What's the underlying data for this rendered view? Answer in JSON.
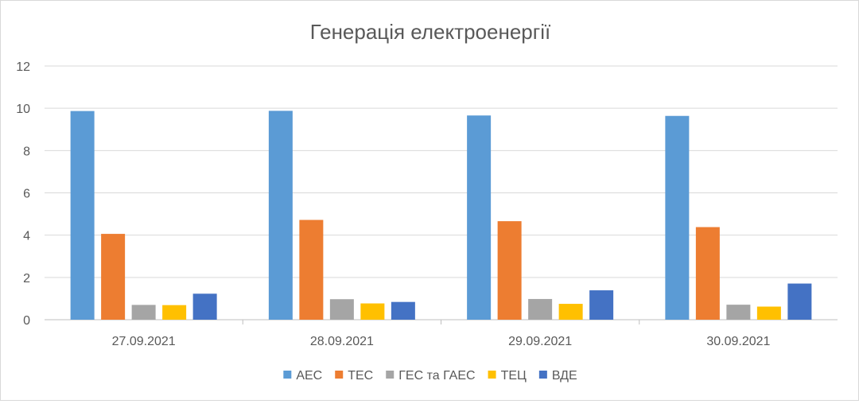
{
  "chart_data": {
    "type": "bar",
    "title": "Генерація електроенергії",
    "xlabel": "",
    "ylabel": "",
    "ylim": [
      0,
      12
    ],
    "yticks": [
      0,
      2,
      4,
      6,
      8,
      10,
      12
    ],
    "grid": true,
    "legend": "bottom",
    "categories": [
      "27.09.2021",
      "28.09.2021",
      "29.09.2021",
      "30.09.2021"
    ],
    "series": [
      {
        "name": "АЕС",
        "color": "#5b9bd5",
        "values": [
          9.87,
          9.88,
          9.66,
          9.64
        ]
      },
      {
        "name": "ТЕС",
        "color": "#ed7d31",
        "values": [
          4.06,
          4.72,
          4.66,
          4.38
        ]
      },
      {
        "name": "ГЕС та ГАЕС",
        "color": "#a5a5a5",
        "values": [
          0.7,
          0.97,
          0.98,
          0.71
        ]
      },
      {
        "name": "ТЕЦ",
        "color": "#ffc000",
        "values": [
          0.69,
          0.77,
          0.75,
          0.62
        ]
      },
      {
        "name": "ВДЕ",
        "color": "#4472c4",
        "values": [
          1.23,
          0.84,
          1.39,
          1.71
        ]
      }
    ]
  }
}
